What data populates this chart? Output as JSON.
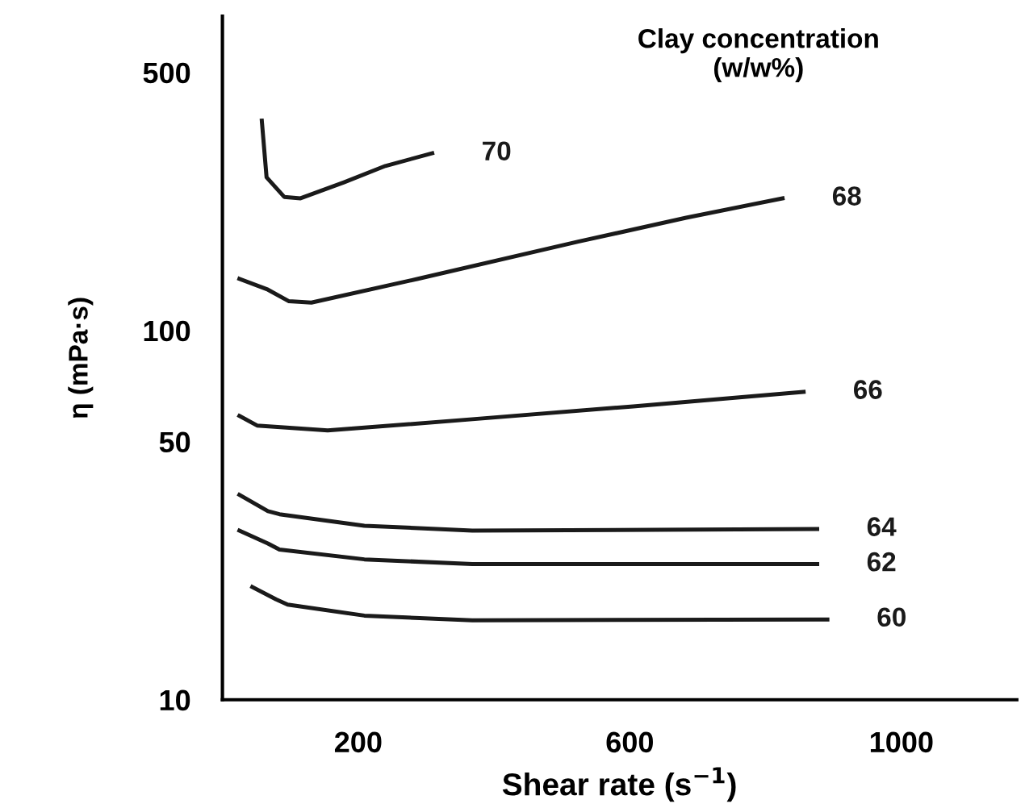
{
  "chart_data": {
    "type": "line",
    "xlabel": "Shear rate (s$^{−1}$)",
    "ylabel": "η (mPa·s)",
    "legend_title": "Clay concentration\n(w/w%)",
    "log": "y",
    "xlim": [
      0,
      1170
    ],
    "ylim": [
      10,
      710
    ],
    "xticks": [
      200,
      600,
      1000
    ],
    "yticks": [
      10,
      50,
      100,
      500
    ],
    "grid": false,
    "legend": false,
    "marker": "none",
    "line_style": "solid",
    "series": [
      {
        "name": "70",
        "color": "#1a1a1a",
        "x": [
          58,
          65,
          91,
          115,
          179,
          240,
          309
        ],
        "values": [
          370,
          260,
          230,
          228,
          252,
          279,
          302
        ]
      },
      {
        "name": "68",
        "color": "#1a1a1a",
        "x": [
          25,
          67,
          98,
          131,
          288,
          524,
          683,
          825
        ],
        "values": [
          138,
          129,
          120,
          119,
          138,
          174,
          202,
          228
        ]
      },
      {
        "name": "66",
        "color": "#1a1a1a",
        "x": [
          25,
          51,
          155,
          368,
          605,
          856
        ],
        "values": [
          58.7,
          55.3,
          53.6,
          57.5,
          62.3,
          68.2
        ]
      },
      {
        "name": "64",
        "color": "#1a1a1a",
        "x": [
          25,
          67,
          84,
          209,
          368,
          876
        ],
        "values": [
          35.9,
          32.4,
          31.8,
          29.6,
          28.7,
          29.0
        ]
      },
      {
        "name": "62",
        "color": "#1a1a1a",
        "x": [
          25,
          67,
          84,
          209,
          368,
          876
        ],
        "values": [
          28.7,
          26.5,
          25.5,
          24.0,
          23.3,
          23.3
        ]
      },
      {
        "name": "60",
        "color": "#1a1a1a",
        "x": [
          44,
          79,
          96,
          209,
          368,
          891
        ],
        "values": [
          20.2,
          18.7,
          18.1,
          16.9,
          16.4,
          16.5
        ]
      }
    ]
  }
}
